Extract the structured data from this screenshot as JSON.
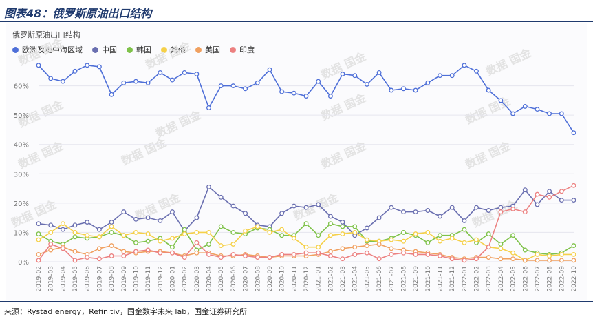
{
  "header": {
    "title": "图表48：俄罗斯原油出口结构"
  },
  "footer": {
    "source": "来源：Rystad energy，Refinitiv，国金数字未来 lab，国金证券研究所"
  },
  "watermark": "数据 国金",
  "chart_data": {
    "type": "line",
    "title": "俄罗斯原油出口结构",
    "x": [
      "2019-02",
      "2019-03",
      "2019-04",
      "2019-05",
      "2019-06",
      "2019-07",
      "2019-08",
      "2019-09",
      "2019-10",
      "2019-11",
      "2019-12",
      "2020-01",
      "2020-02",
      "2020-03",
      "2020-04",
      "2020-05",
      "2020-06",
      "2020-07",
      "2020-08",
      "2020-09",
      "2020-10",
      "2020-11",
      "2020-12",
      "2021-01",
      "2021-02",
      "2021-03",
      "2021-04",
      "2021-05",
      "2021-06",
      "2021-07",
      "2021-08",
      "2021-09",
      "2021-10",
      "2021-11",
      "2021-12",
      "2022-01",
      "2022-02",
      "2022-03",
      "2022-04",
      "2022-05",
      "2022-06",
      "2022-07",
      "2022-08",
      "2022-09",
      "2022-10"
    ],
    "y_ticks": [
      "0%",
      "10%",
      "20%",
      "30%",
      "40%",
      "50%",
      "60%"
    ],
    "ylim": [
      0,
      70
    ],
    "legend_position": "top-left",
    "series": [
      {
        "name": "欧洲及地中海区域",
        "color": "#4e6fd8",
        "values": [
          67,
          62.5,
          61.5,
          65,
          67,
          66.5,
          57,
          61,
          61.5,
          61,
          64.5,
          62,
          64.5,
          64,
          52.5,
          60,
          60,
          59,
          61,
          65.5,
          58,
          57.5,
          56.5,
          61.5,
          56.5,
          64,
          63.5,
          60.5,
          64.5,
          58.5,
          59,
          58.5,
          61,
          63.5,
          63.5,
          67,
          65,
          58.5,
          55,
          50.5,
          53,
          52,
          50.5,
          50.5,
          44
        ]
      },
      {
        "name": "中国",
        "color": "#6a6fb0",
        "values": [
          13,
          12.5,
          11,
          12.5,
          13.5,
          11,
          13.5,
          17,
          14.5,
          15,
          14,
          17,
          10.5,
          15,
          25.5,
          22,
          19,
          16.5,
          12.5,
          12,
          16.5,
          19,
          18.5,
          19.5,
          15.5,
          13.5,
          9,
          11.5,
          15,
          18.5,
          17,
          17,
          17.5,
          15.5,
          18.5,
          14,
          18.5,
          17.5,
          18.5,
          19,
          24.5,
          19.5,
          24,
          21,
          21
        ]
      },
      {
        "name": "韩国",
        "color": "#7fc24a",
        "values": [
          9.5,
          7,
          6,
          8.5,
          8,
          8.5,
          10,
          9,
          6.5,
          7,
          8,
          5,
          11,
          4,
          6,
          12,
          10,
          9.5,
          11.5,
          11,
          9,
          9,
          13,
          9,
          13,
          12,
          12,
          7,
          7,
          8,
          10,
          9,
          6.5,
          9,
          9,
          11,
          6.5,
          9.5,
          6,
          9,
          4,
          3,
          2.5,
          3,
          5.5
        ]
      },
      {
        "name": "其他",
        "color": "#f5d048",
        "values": [
          7.5,
          10,
          13,
          10,
          9,
          8.5,
          12,
          9,
          10,
          9.5,
          7,
          8,
          9.5,
          10,
          10,
          5.5,
          6,
          10.5,
          12,
          10,
          11,
          8,
          5,
          5,
          9,
          9.5,
          10,
          7.5,
          7,
          7.5,
          7,
          9.5,
          10,
          7,
          8,
          6.5,
          7.5,
          5,
          4.5,
          3,
          0.5,
          2.5,
          2,
          2.5,
          2.5
        ]
      },
      {
        "name": "美国",
        "color": "#f0a060",
        "values": [
          2.5,
          4,
          5,
          3.5,
          2.5,
          4.5,
          5.5,
          3.5,
          3,
          3.5,
          3.5,
          3,
          2,
          3,
          3,
          2,
          2,
          2.5,
          2,
          1.5,
          2,
          2,
          2,
          2.5,
          3.5,
          4.5,
          5,
          5.5,
          6,
          4.5,
          4,
          3.5,
          3,
          2.5,
          1.5,
          1,
          1.5,
          1.5,
          1,
          1,
          0.5,
          0.5,
          0.5,
          0.5,
          0.5
        ]
      },
      {
        "name": "印度",
        "color": "#ec8080",
        "values": [
          0.5,
          6,
          4.5,
          0.5,
          1.5,
          1,
          2,
          2,
          3.5,
          4,
          3,
          3,
          1.5,
          6.5,
          2.5,
          1.5,
          2.5,
          2,
          1.5,
          1.5,
          2.5,
          2.5,
          3,
          3,
          2,
          1,
          2.5,
          3,
          1,
          2.5,
          3,
          2.5,
          2.5,
          2,
          1,
          0.5,
          1,
          5,
          17,
          18,
          17,
          23,
          22,
          24,
          26
        ]
      }
    ]
  }
}
